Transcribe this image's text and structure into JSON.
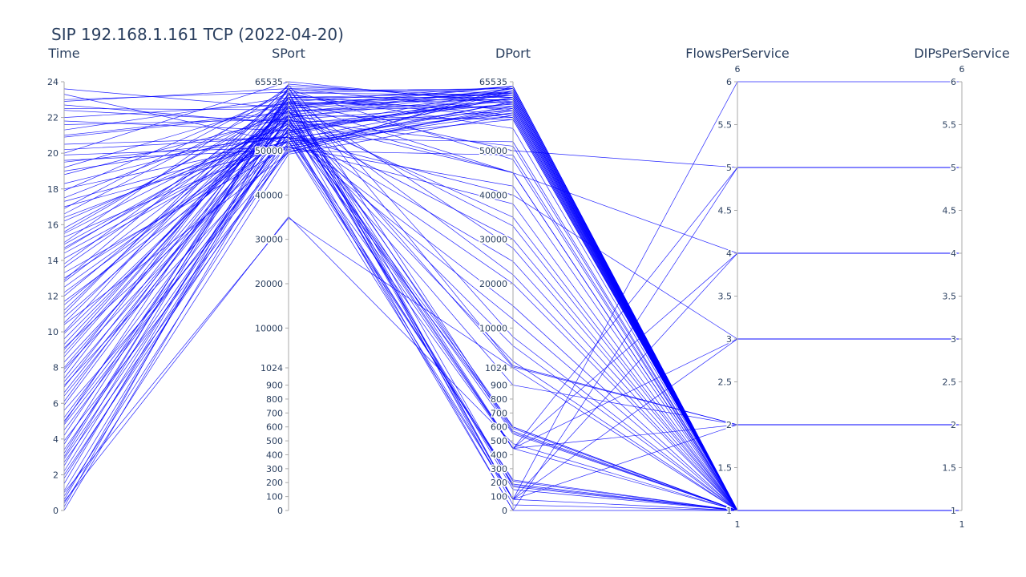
{
  "chart_data": {
    "type": "parallel_coordinates",
    "title": "SIP 192.168.1.161 TCP (2022-04-20)",
    "line_color": "#0000ff",
    "axis_label_color": "#2a3f5f",
    "dimensions": [
      {
        "name": "Time",
        "scale": "linear",
        "range": [
          0,
          24
        ],
        "ticks": [
          {
            "value": 0,
            "label": "0"
          },
          {
            "value": 2,
            "label": "2"
          },
          {
            "value": 4,
            "label": "4"
          },
          {
            "value": 6,
            "label": "6"
          },
          {
            "value": 8,
            "label": "8"
          },
          {
            "value": 10,
            "label": "10"
          },
          {
            "value": 12,
            "label": "12"
          },
          {
            "value": 14,
            "label": "14"
          },
          {
            "value": 16,
            "label": "16"
          },
          {
            "value": 18,
            "label": "18"
          },
          {
            "value": 20,
            "label": "20"
          },
          {
            "value": 22,
            "label": "22"
          },
          {
            "value": 24,
            "label": "24"
          }
        ]
      },
      {
        "name": "SPort",
        "scale": "piecewise",
        "breakpoints": [
          0,
          1024,
          65535
        ],
        "ticks": [
          {
            "value": 0,
            "label": "0"
          },
          {
            "value": 100,
            "label": "100"
          },
          {
            "value": 200,
            "label": "200"
          },
          {
            "value": 300,
            "label": "300"
          },
          {
            "value": 400,
            "label": "400"
          },
          {
            "value": 500,
            "label": "500"
          },
          {
            "value": 600,
            "label": "600"
          },
          {
            "value": 700,
            "label": "700"
          },
          {
            "value": 800,
            "label": "800"
          },
          {
            "value": 900,
            "label": "900"
          },
          {
            "value": 1024,
            "label": "1024"
          },
          {
            "value": 10000,
            "label": "10000"
          },
          {
            "value": 20000,
            "label": "20000"
          },
          {
            "value": 30000,
            "label": "30000"
          },
          {
            "value": 40000,
            "label": "40000"
          },
          {
            "value": 50000,
            "label": "50000"
          },
          {
            "value": 65535,
            "label": "65535"
          }
        ]
      },
      {
        "name": "DPort",
        "scale": "piecewise",
        "breakpoints": [
          0,
          1024,
          65535
        ],
        "ticks": [
          {
            "value": 0,
            "label": "0"
          },
          {
            "value": 100,
            "label": "100"
          },
          {
            "value": 200,
            "label": "200"
          },
          {
            "value": 300,
            "label": "300"
          },
          {
            "value": 400,
            "label": "400"
          },
          {
            "value": 500,
            "label": "500"
          },
          {
            "value": 600,
            "label": "600"
          },
          {
            "value": 700,
            "label": "700"
          },
          {
            "value": 800,
            "label": "800"
          },
          {
            "value": 900,
            "label": "900"
          },
          {
            "value": 1024,
            "label": "1024"
          },
          {
            "value": 10000,
            "label": "10000"
          },
          {
            "value": 20000,
            "label": "20000"
          },
          {
            "value": 30000,
            "label": "30000"
          },
          {
            "value": 40000,
            "label": "40000"
          },
          {
            "value": 50000,
            "label": "50000"
          },
          {
            "value": 65535,
            "label": "65535"
          }
        ]
      },
      {
        "name": "FlowsPerService",
        "scale": "linear",
        "range": [
          1,
          6
        ],
        "range_labels": {
          "min": "1",
          "max": "6"
        },
        "ticks": [
          {
            "value": 1,
            "label": "1"
          },
          {
            "value": 1.5,
            "label": "1.5"
          },
          {
            "value": 2,
            "label": "2"
          },
          {
            "value": 2.5,
            "label": "2.5"
          },
          {
            "value": 3,
            "label": "3"
          },
          {
            "value": 3.5,
            "label": "3.5"
          },
          {
            "value": 4,
            "label": "4"
          },
          {
            "value": 4.5,
            "label": "4.5"
          },
          {
            "value": 5,
            "label": "5"
          },
          {
            "value": 5.5,
            "label": "5.5"
          },
          {
            "value": 6,
            "label": "6"
          }
        ]
      },
      {
        "name": "DIPsPerService",
        "scale": "linear",
        "range": [
          1,
          6
        ],
        "range_labels": {
          "min": "1",
          "max": "6"
        },
        "ticks": [
          {
            "value": 1,
            "label": "1"
          },
          {
            "value": 1.5,
            "label": "1.5"
          },
          {
            "value": 2,
            "label": "2"
          },
          {
            "value": 2.5,
            "label": "2.5"
          },
          {
            "value": 3,
            "label": "3"
          },
          {
            "value": 3.5,
            "label": "3.5"
          },
          {
            "value": 4,
            "label": "4"
          },
          {
            "value": 4.5,
            "label": "4.5"
          },
          {
            "value": 5,
            "label": "5"
          },
          {
            "value": 5.5,
            "label": "5.5"
          },
          {
            "value": 6,
            "label": "6"
          }
        ]
      }
    ],
    "records": [
      [
        0.0,
        54000,
        62000,
        1,
        1
      ],
      [
        0.4,
        49200,
        58000,
        1,
        1
      ],
      [
        0.8,
        51000,
        61000,
        1,
        1
      ],
      [
        1.1,
        56000,
        60500,
        1,
        1
      ],
      [
        1.5,
        60000,
        63000,
        1,
        1
      ],
      [
        2.0,
        52000,
        57000,
        1,
        1
      ],
      [
        2.2,
        58000,
        64000,
        1,
        1
      ],
      [
        2.7,
        50500,
        59500,
        1,
        1
      ],
      [
        3.0,
        63000,
        62500,
        1,
        1
      ],
      [
        3.4,
        55000,
        61500,
        1,
        1
      ],
      [
        3.9,
        49800,
        60000,
        1,
        1
      ],
      [
        4.2,
        61000,
        64500,
        1,
        1
      ],
      [
        4.8,
        53000,
        58500,
        1,
        1
      ],
      [
        5.2,
        57500,
        63500,
        1,
        1
      ],
      [
        5.6,
        50000,
        49000,
        1,
        1
      ],
      [
        6.1,
        62000,
        62000,
        1,
        1
      ],
      [
        6.6,
        59000,
        60000,
        1,
        1
      ],
      [
        7.0,
        51500,
        61000,
        1,
        1
      ],
      [
        7.4,
        64000,
        59000,
        1,
        1
      ],
      [
        7.9,
        54500,
        64000,
        1,
        1
      ],
      [
        8.3,
        56500,
        57500,
        1,
        1
      ],
      [
        8.8,
        60500,
        63000,
        1,
        1
      ],
      [
        9.1,
        52500,
        62000,
        1,
        1
      ],
      [
        9.6,
        58500,
        45000,
        1,
        1
      ],
      [
        10.0,
        65000,
        61000,
        1,
        1
      ],
      [
        10.4,
        49500,
        64500,
        1,
        1
      ],
      [
        10.8,
        57000,
        60500,
        1,
        1
      ],
      [
        11.2,
        62500,
        58000,
        1,
        1
      ],
      [
        11.7,
        53500,
        63500,
        1,
        1
      ],
      [
        12.0,
        59500,
        62500,
        1,
        1
      ],
      [
        12.5,
        55500,
        59000,
        1,
        1
      ],
      [
        12.9,
        63500,
        64000,
        1,
        1
      ],
      [
        13.3,
        50800,
        38000,
        1,
        1
      ],
      [
        13.8,
        61500,
        61500,
        1,
        1
      ],
      [
        14.1,
        54000,
        63000,
        1,
        1
      ],
      [
        14.6,
        58000,
        57000,
        1,
        1
      ],
      [
        15.0,
        64500,
        62000,
        1,
        1
      ],
      [
        15.3,
        52000,
        60000,
        1,
        1
      ],
      [
        15.8,
        60000,
        64500,
        1,
        1
      ],
      [
        16.2,
        56000,
        30000,
        1,
        1
      ],
      [
        16.6,
        62000,
        63000,
        1,
        1
      ],
      [
        17.0,
        51000,
        58500,
        1,
        1
      ],
      [
        17.5,
        59000,
        61000,
        1,
        1
      ],
      [
        17.9,
        63000,
        64000,
        1,
        1
      ],
      [
        18.3,
        55000,
        20000,
        1,
        1
      ],
      [
        18.8,
        57500,
        62500,
        1,
        1
      ],
      [
        19.2,
        61000,
        59500,
        1,
        1
      ],
      [
        19.6,
        50200,
        63500,
        1,
        1
      ],
      [
        20.0,
        65535,
        60500,
        1,
        1
      ],
      [
        20.5,
        53000,
        12000,
        1,
        1
      ],
      [
        20.9,
        58500,
        64000,
        1,
        1
      ],
      [
        21.3,
        62000,
        57500,
        1,
        1
      ],
      [
        21.8,
        54500,
        62000,
        1,
        1
      ],
      [
        22.0,
        60500,
        61500,
        1,
        1
      ],
      [
        22.4,
        56500,
        6000,
        1,
        1
      ],
      [
        22.9,
        64000,
        63000,
        1,
        1
      ],
      [
        23.3,
        51500,
        59000,
        1,
        1
      ],
      [
        23.6,
        59500,
        64500,
        1,
        1
      ],
      [
        1.8,
        55800,
        2500,
        1,
        1
      ],
      [
        6.9,
        61800,
        28000,
        1,
        1
      ],
      [
        9.9,
        57800,
        35000,
        1,
        1
      ],
      [
        13.0,
        52800,
        52000,
        1,
        1
      ],
      [
        16.9,
        63800,
        48000,
        1,
        1
      ],
      [
        19.9,
        50800,
        42000,
        1,
        1
      ],
      [
        2.5,
        62800,
        55000,
        1,
        1
      ],
      [
        4.5,
        53800,
        15000,
        1,
        1
      ],
      [
        8.0,
        59800,
        22000,
        1,
        1
      ],
      [
        11.0,
        64800,
        8000,
        1,
        1
      ],
      [
        14.9,
        56800,
        51000,
        1,
        1
      ],
      [
        21.0,
        58800,
        33000,
        1,
        1
      ],
      [
        0.2,
        60800,
        45000,
        1,
        1
      ],
      [
        5.0,
        54800,
        25000,
        1,
        1
      ],
      [
        15.5,
        57000,
        600,
        1,
        1
      ],
      [
        10.5,
        61200,
        560,
        1,
        1
      ],
      [
        19.0,
        53200,
        210,
        1,
        1
      ],
      [
        0.6,
        58200,
        180,
        1,
        1
      ],
      [
        3.2,
        62200,
        40,
        1,
        1
      ],
      [
        12.2,
        55200,
        590,
        1,
        1
      ],
      [
        22.5,
        59200,
        150,
        1,
        1
      ],
      [
        7.7,
        64200,
        570,
        1,
        1
      ],
      [
        17.3,
        52200,
        220,
        1,
        1
      ],
      [
        6.4,
        57200,
        550,
        1,
        1
      ],
      [
        9.3,
        60200,
        600,
        1,
        1
      ],
      [
        14.4,
        54200,
        190,
        1,
        1
      ],
      [
        23.0,
        63200,
        170,
        1,
        1
      ],
      [
        1.0,
        34800,
        1024,
        1,
        1
      ],
      [
        0.5,
        35100,
        480,
        1,
        1
      ],
      [
        14.7,
        56000,
        445,
        2,
        2
      ],
      [
        8.6,
        61000,
        445,
        3,
        3
      ],
      [
        20.2,
        53000,
        445,
        4,
        4
      ],
      [
        11.5,
        58000,
        443,
        5,
        5
      ],
      [
        3.7,
        63000,
        80,
        6,
        6
      ],
      [
        16.4,
        54000,
        80,
        2,
        2
      ],
      [
        5.9,
        60000,
        80,
        4,
        4
      ],
      [
        21.6,
        57000,
        0,
        5,
        5
      ],
      [
        18.0,
        52000,
        80,
        3,
        3
      ],
      [
        12.8,
        59000,
        445,
        1,
        1
      ],
      [
        9.0,
        62000,
        80,
        1,
        1
      ],
      [
        2.9,
        55000,
        0,
        1,
        1
      ],
      [
        15.6,
        61000,
        50000,
        5,
        5
      ],
      [
        7.2,
        57000,
        45000,
        4,
        4
      ],
      [
        19.5,
        53000,
        40000,
        3,
        3
      ],
      [
        13.6,
        59000,
        1200,
        2,
        2
      ],
      [
        4.9,
        64000,
        1500,
        2,
        2
      ],
      [
        22.7,
        56000,
        900,
        2,
        2
      ]
    ]
  }
}
